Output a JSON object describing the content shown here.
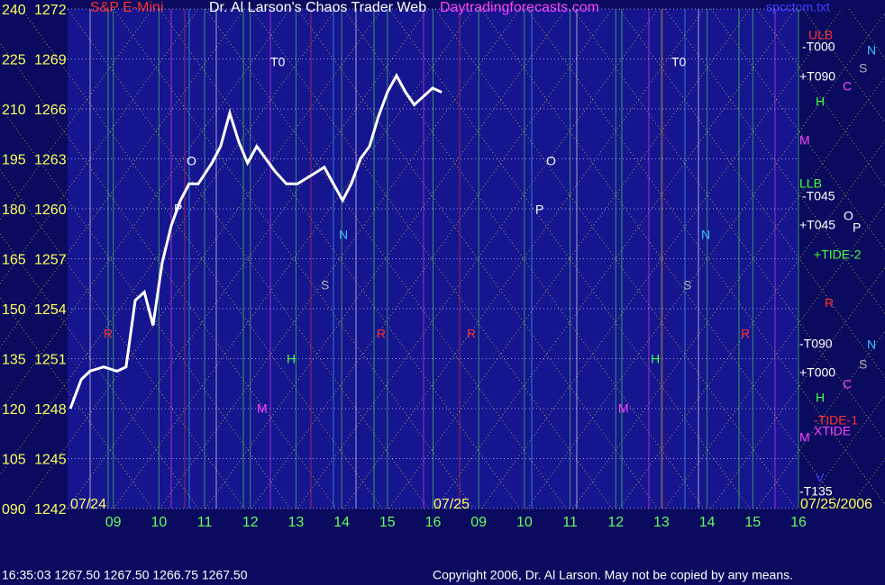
{
  "chart_data": {
    "type": "line",
    "title": "Dr. Al Larson's Chaos Trader Web",
    "symbol": "S&P E-Mini",
    "site": "Daytradingforecasts.com",
    "file": "spcctom.txt",
    "status": "16:35:03  1267.50 1267.50 1266.75 1267.50",
    "copyright": "Copyright 2006, Dr. Al Larson. May not be copied by any means.",
    "date_labels": [
      "07/24",
      "07/25",
      "07/25/2006"
    ],
    "color": "#ffffff",
    "x": [
      0.06,
      0.3,
      0.49,
      0.79,
      1.08,
      1.28,
      1.38,
      1.48,
      1.68,
      1.87,
      2.07,
      2.27,
      2.47,
      2.66,
      2.86,
      3.16,
      3.35,
      3.55,
      3.75,
      3.94,
      4.14,
      4.34,
      4.54,
      4.79,
      5.03,
      5.33,
      5.62,
      5.82,
      6.02,
      6.21,
      6.41,
      6.61,
      6.8,
      7.0,
      7.2,
      7.4,
      7.59,
      7.79,
      7.99,
      8.19
    ],
    "values": [
      1248,
      1249.75,
      1250.25,
      1250.5,
      1250.25,
      1250.5,
      1252.5,
      1254.5,
      1255,
      1253,
      1256.75,
      1259,
      1260.5,
      1261.5,
      1261.5,
      1262.75,
      1263.75,
      1265.75,
      1264,
      1262.75,
      1263.75,
      1263,
      1262.25,
      1261.5,
      1261.5,
      1262,
      1262.5,
      1261.5,
      1260.5,
      1261.5,
      1263,
      1263.75,
      1265.5,
      1267,
      1268,
      1267,
      1266.25,
      1266.75,
      1267.25,
      1267
    ],
    "xlim": [
      0,
      16
    ],
    "xticks": [
      {
        "value": 1,
        "label": "09"
      },
      {
        "value": 2,
        "label": "10"
      },
      {
        "value": 3,
        "label": "11"
      },
      {
        "value": 4,
        "label": "12"
      },
      {
        "value": 5,
        "label": "13"
      },
      {
        "value": 6,
        "label": "14"
      },
      {
        "value": 7,
        "label": "15"
      },
      {
        "value": 8,
        "label": "16"
      },
      {
        "value": 9,
        "label": "09"
      },
      {
        "value": 10,
        "label": "10"
      },
      {
        "value": 11,
        "label": "11"
      },
      {
        "value": 12,
        "label": "12"
      },
      {
        "value": 13,
        "label": "13"
      },
      {
        "value": 14,
        "label": "14"
      },
      {
        "value": 15,
        "label": "15"
      },
      {
        "value": 16,
        "label": "16"
      }
    ],
    "ylim": [
      1242,
      1272
    ],
    "yticks": [
      1242,
      1245,
      1248,
      1251,
      1254,
      1257,
      1260,
      1263,
      1266,
      1269,
      1272
    ],
    "y2lim": [
      90,
      240
    ],
    "y2ticks": [
      {
        "value": 90,
        "label": "090"
      },
      105,
      120,
      135,
      150,
      165,
      180,
      195,
      210,
      225,
      240
    ],
    "annotations": [
      "ULB",
      "-T000",
      "N",
      "+T090",
      "S",
      "C",
      "H",
      "M",
      "LLB",
      "-T045",
      "+T045",
      "O",
      "P",
      "+TIDE-2",
      "R",
      "-T090",
      "N",
      "+T000",
      "S",
      "C",
      "H",
      "-TIDE-1",
      "XTIDE",
      "M",
      "V",
      "-T135",
      "T0",
      "T0",
      "O",
      "P",
      "N",
      "S",
      "H",
      "M",
      "R",
      "R",
      "R",
      "O",
      "P",
      "N",
      "S",
      "H",
      "M",
      "R"
    ]
  }
}
